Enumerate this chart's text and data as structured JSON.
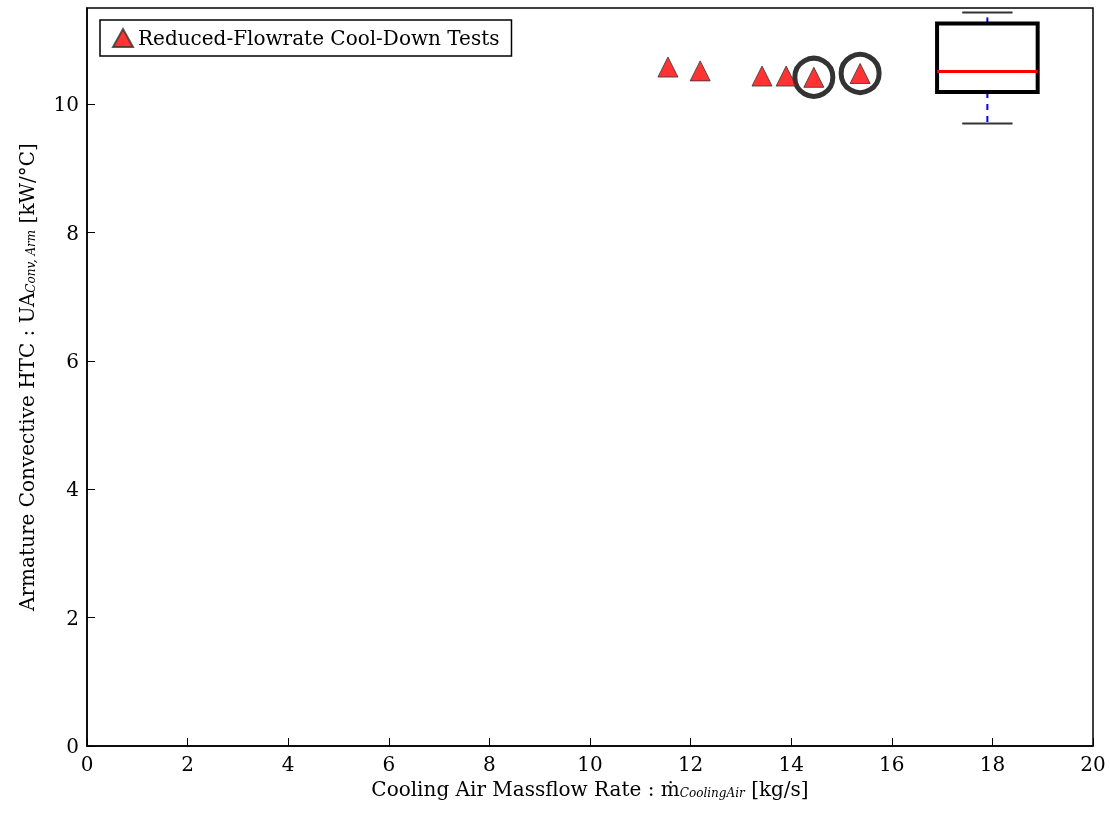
{
  "chart_data": {
    "type": "scatter",
    "xlabel": "Cooling Air Massflow Rate : ṁ$_{CoolingAir}$ [kg/s]",
    "ylabel": "Armature Convective HTC : UA$_{Conv, Arm}$ [kW/°C]",
    "xlim": [
      0,
      20
    ],
    "xticks": [
      0,
      2,
      4,
      6,
      8,
      10,
      12,
      14,
      16,
      18,
      20
    ],
    "ylim": [
      0,
      11.5
    ],
    "yticks": [
      0,
      2,
      4,
      6,
      8,
      10
    ],
    "grid": false,
    "legend": "top left",
    "marker": "triangle",
    "series": [
      {
        "name": "Reduced-Flowrate Cool-Down Tests",
        "color": "#ff0000",
        "x": [
          11.55,
          12.19,
          13.42,
          13.9,
          14.45,
          15.37
        ],
        "values": [
          10.58,
          10.52,
          10.44,
          10.44,
          10.42,
          10.48
        ]
      },
      {
        "color": "#000000",
        "marker": "circle",
        "x": [
          14.45,
          15.37
        ],
        "values": [
          10.42,
          10.48
        ]
      },
      {
        "type": "box",
        "color": "#000000",
        "x": [
          17.9
        ],
        "boxes": [
          {
            "low": 9.7,
            "q1": 10.19,
            "median": 10.51,
            "q3": 11.26,
            "high": 11.43
          }
        ]
      }
    ]
  }
}
